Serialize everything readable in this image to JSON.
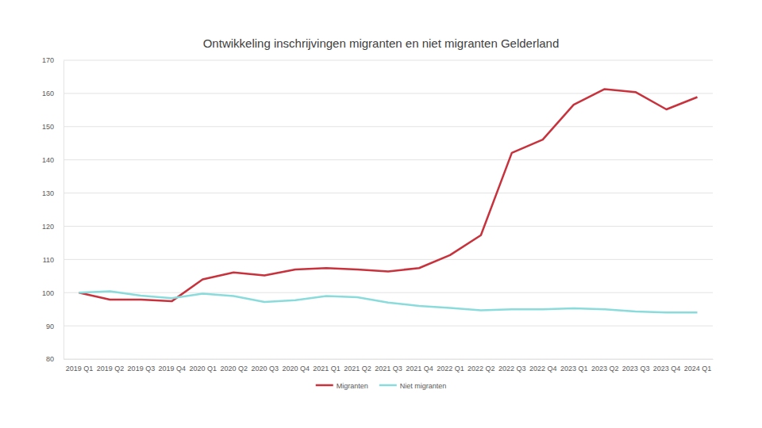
{
  "chart_data": {
    "type": "line",
    "title": "Ontwikkeling inschrijvingen migranten en niet migranten Gelderland",
    "categories": [
      "2019 Q1",
      "2019 Q2",
      "2019 Q3",
      "2019 Q4",
      "2020 Q1",
      "2020 Q2",
      "2020 Q3",
      "2020 Q4",
      "2021 Q1",
      "2021 Q2",
      "2021 Q3",
      "2021 Q4",
      "2022 Q1",
      "2022 Q2",
      "2022 Q3",
      "2022 Q4",
      "2023 Q1",
      "2023 Q2",
      "2023 Q3",
      "2023 Q4",
      "2024 Q1"
    ],
    "series": [
      {
        "name": "Migranten",
        "color": "#c8323c",
        "values": [
          100,
          97.9,
          97.9,
          97.4,
          104,
          106.1,
          105.2,
          107,
          107.4,
          107,
          106.4,
          107.4,
          111.3,
          117.3,
          142.1,
          146.1,
          156.6,
          161.3,
          160.4,
          155.2,
          158.9
        ]
      },
      {
        "name": "Niet migranten",
        "color": "#8adcdc",
        "values": [
          100,
          100.4,
          99.1,
          98.3,
          99.7,
          99,
          97.2,
          97.7,
          99,
          98.6,
          97,
          96,
          95.4,
          94.7,
          95,
          95,
          95.3,
          95,
          94.3,
          94,
          94
        ]
      }
    ],
    "ylim": [
      80,
      170
    ],
    "yticks": [
      80,
      90,
      100,
      110,
      120,
      130,
      140,
      150,
      160,
      170
    ],
    "grid": true,
    "legend": "bottom"
  }
}
